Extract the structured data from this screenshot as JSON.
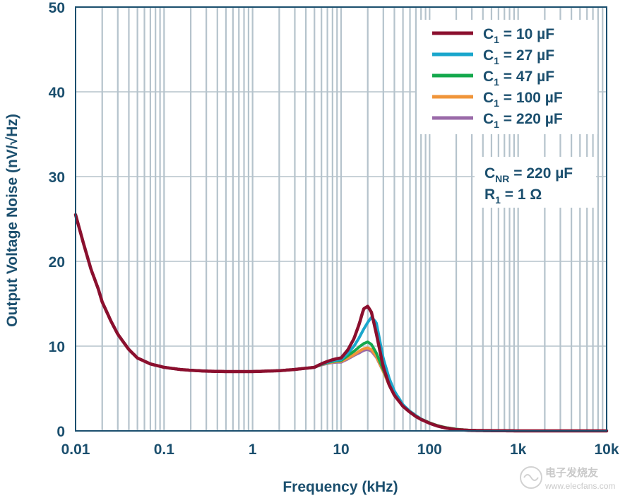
{
  "chart_data": {
    "type": "line",
    "xlabel": "Frequency (kHz)",
    "ylabel": "Output Voltage Noise (nV/√Hz)",
    "xscale": "log",
    "xlim": [
      0.01,
      10000
    ],
    "ylim": [
      0,
      50
    ],
    "grid": true,
    "legend_position": "top-right",
    "x_ticks": [
      "0.01",
      "0.1",
      "1",
      "10",
      "100",
      "1k",
      "10k"
    ],
    "y_ticks": [
      "0",
      "10",
      "20",
      "30",
      "40",
      "50"
    ],
    "annotation": {
      "line1_main": "C",
      "line1_sub": "NR",
      "line1_rest": " = 220 µF",
      "line2_main": "R",
      "line2_sub": "1",
      "line2_rest": " = 1 Ω"
    },
    "base": {
      "x": [
        0.01,
        0.012,
        0.015,
        0.018,
        0.02,
        0.025,
        0.03,
        0.04,
        0.05,
        0.07,
        0.1,
        0.15,
        0.2,
        0.3,
        0.5,
        0.7,
        1,
        2,
        3,
        5,
        7,
        10
      ],
      "y": [
        25.5,
        22.5,
        19.0,
        16.8,
        15.2,
        13.0,
        11.4,
        9.6,
        8.6,
        7.9,
        7.5,
        7.25,
        7.15,
        7.05,
        7.0,
        7.0,
        7.0,
        7.1,
        7.25,
        7.5,
        7.8,
        8.2
      ]
    },
    "series": [
      {
        "name_main": "C",
        "name_sub": "1",
        "name_rest": " = 10 µF",
        "color": "#8b0f2e",
        "x": [
          10,
          12,
          14,
          16,
          18,
          20,
          22,
          25,
          30,
          35,
          40,
          50,
          60,
          70,
          80,
          100,
          120,
          150,
          200,
          300,
          1000,
          10000
        ],
        "y": [
          8.6,
          9.6,
          10.9,
          12.6,
          14.4,
          14.7,
          14.0,
          11.5,
          7.5,
          5.4,
          4.2,
          2.9,
          2.2,
          1.7,
          1.35,
          0.9,
          0.6,
          0.35,
          0.15,
          0.05,
          0.0,
          0.0
        ]
      },
      {
        "name_main": "C",
        "name_sub": "1",
        "name_rest": " = 27 µF",
        "color": "#1aa6cc",
        "x": [
          10,
          12,
          14,
          16,
          18,
          20,
          22,
          25,
          27,
          30,
          35,
          40,
          50,
          60,
          70,
          80,
          100,
          120,
          150,
          200,
          300,
          1000,
          10000
        ],
        "y": [
          8.4,
          9.2,
          10.0,
          11.0,
          12.0,
          12.8,
          13.4,
          12.8,
          11.0,
          8.5,
          6.2,
          4.7,
          3.1,
          2.3,
          1.8,
          1.4,
          0.9,
          0.6,
          0.35,
          0.15,
          0.05,
          0.0,
          0.0
        ]
      },
      {
        "name_main": "C",
        "name_sub": "1",
        "name_rest": " = 47 µF",
        "color": "#14a84c",
        "x": [
          10,
          12,
          14,
          16,
          18,
          20,
          22,
          25,
          30,
          35,
          40,
          50,
          60,
          70,
          80,
          100,
          120,
          150,
          200,
          300,
          1000,
          10000
        ],
        "y": [
          8.3,
          8.9,
          9.4,
          9.9,
          10.3,
          10.5,
          10.2,
          9.2,
          7.2,
          5.5,
          4.4,
          3.0,
          2.3,
          1.8,
          1.4,
          0.95,
          0.65,
          0.4,
          0.2,
          0.05,
          0.0,
          0.0
        ]
      },
      {
        "name_main": "C",
        "name_sub": "1",
        "name_rest": " = 100 µF",
        "color": "#f0953a",
        "x": [
          10,
          12,
          14,
          16,
          18,
          20,
          22,
          25,
          30,
          35,
          40,
          50,
          60,
          70,
          80,
          100,
          120,
          150,
          200,
          300,
          1000,
          10000
        ],
        "y": [
          8.2,
          8.6,
          9.0,
          9.4,
          9.7,
          9.8,
          9.6,
          8.8,
          7.0,
          5.4,
          4.3,
          3.0,
          2.3,
          1.8,
          1.4,
          0.95,
          0.65,
          0.4,
          0.2,
          0.05,
          0.0,
          0.0
        ]
      },
      {
        "name_main": "C",
        "name_sub": "1",
        "name_rest": " = 220 µF",
        "color": "#9a6aa8",
        "x": [
          10,
          12,
          14,
          16,
          18,
          20,
          22,
          25,
          30,
          35,
          40,
          50,
          60,
          70,
          80,
          100,
          120,
          150,
          200,
          300,
          1000,
          10000
        ],
        "y": [
          8.1,
          8.5,
          8.9,
          9.2,
          9.5,
          9.6,
          9.4,
          8.7,
          7.0,
          5.4,
          4.3,
          3.0,
          2.3,
          1.8,
          1.4,
          0.95,
          0.65,
          0.4,
          0.2,
          0.05,
          0.0,
          0.0
        ]
      }
    ]
  },
  "watermark": {
    "line1": "电子发烧友",
    "line2": "www.elecfans.com",
    "icon": "elecfans-logo-icon"
  }
}
